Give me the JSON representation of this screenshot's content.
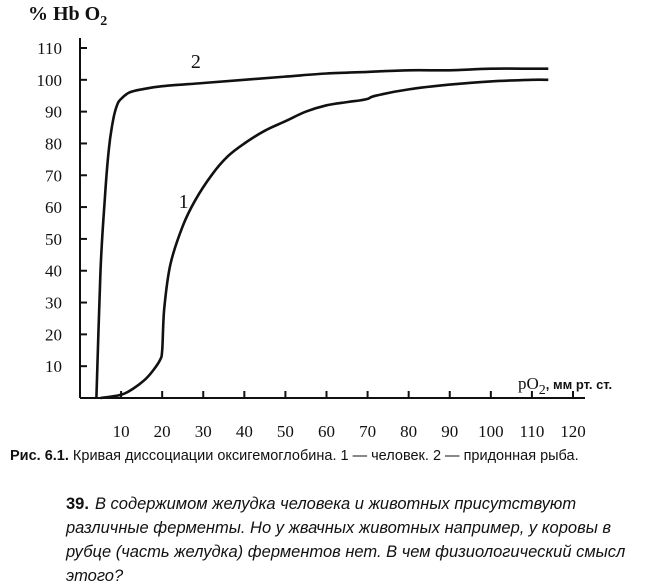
{
  "chart_data": {
    "type": "line",
    "ylabel": "% Hb O₂",
    "xlabel": "pO₂ , мм рт. ст.",
    "ylabel_parts": {
      "main": "% Hb O",
      "sub": "2"
    },
    "xlabel_parts": {
      "main": "pO",
      "sub": "2",
      "unit": ", мм рт. ст."
    },
    "xlim": [
      0,
      120
    ],
    "ylim": [
      0,
      110
    ],
    "x_ticks": [
      10,
      20,
      30,
      40,
      50,
      60,
      70,
      80,
      90,
      100,
      110,
      120
    ],
    "y_ticks": [
      10,
      20,
      30,
      40,
      50,
      60,
      70,
      80,
      90,
      100,
      110
    ],
    "grid": false,
    "series": [
      {
        "name": "1",
        "x": [
          5,
          10,
          13,
          16,
          18,
          19.5,
          20,
          20.5,
          22,
          25,
          28,
          32,
          36,
          40,
          45,
          50,
          55,
          60,
          65,
          68,
          70,
          72,
          80,
          90,
          100,
          110,
          114
        ],
        "y": [
          0,
          1,
          3,
          6,
          9,
          12,
          15,
          28,
          42,
          54,
          62,
          70,
          76,
          80,
          84,
          87,
          90,
          92,
          93,
          93.5,
          94,
          95,
          97,
          98.5,
          99.5,
          100,
          100
        ]
      },
      {
        "name": "2",
        "x": [
          4,
          5,
          6,
          7,
          8,
          9,
          10,
          12,
          15,
          20,
          30,
          40,
          50,
          60,
          70,
          80,
          90,
          100,
          110,
          114
        ],
        "y": [
          0,
          40,
          62,
          78,
          87,
          92,
          94,
          96,
          97,
          98,
          99,
          100,
          101,
          102,
          102.5,
          103,
          103,
          103.5,
          103.5,
          103.5
        ]
      }
    ]
  },
  "caption": {
    "prefix": "Рис. 6.1.",
    "text": " Кривая диссоциации оксигемоглобина. 1 — человек. 2 — придонная рыба."
  },
  "question": {
    "number": "39.",
    "text": "В содержимом желудка человека и животных присутствуют различные ферменты. Но у жвачных животных например, у коровы в рубце (часть желудка) ферментов нет. В чем физиологический смысл этого?"
  }
}
